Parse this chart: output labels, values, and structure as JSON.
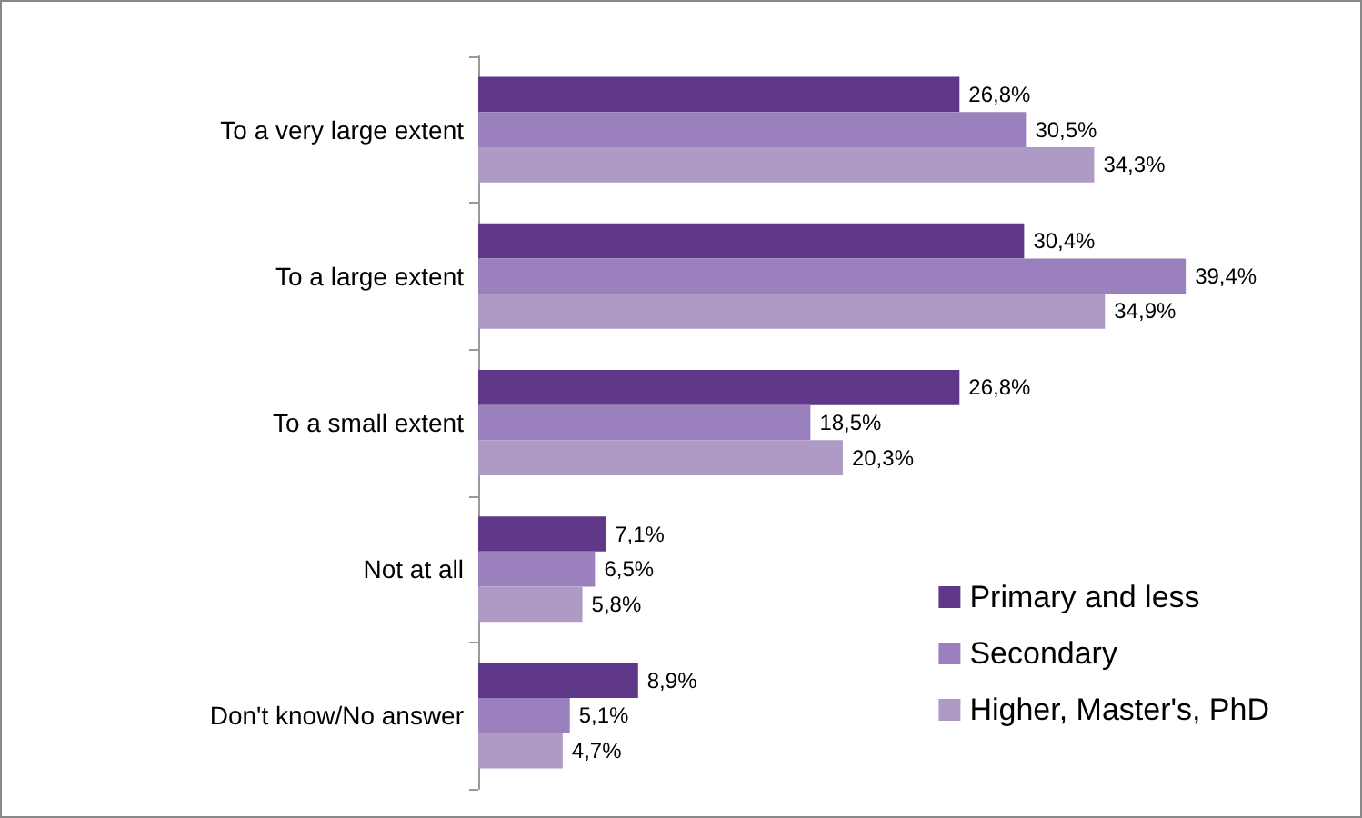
{
  "chart_data": {
    "type": "bar",
    "orientation": "horizontal",
    "categories": [
      "To a very large extent",
      "To a large extent",
      "To a small extent",
      "Not at all",
      "Don't know/No answer"
    ],
    "series": [
      {
        "name": "Primary and less",
        "color": "#60388a",
        "values": [
          26.8,
          30.4,
          26.8,
          7.1,
          8.9
        ],
        "value_labels": [
          "26,8%",
          "30,4%",
          "26,8%",
          "7,1%",
          "8,9%"
        ]
      },
      {
        "name": "Secondary",
        "color": "#9a80bd",
        "values": [
          30.5,
          39.4,
          18.5,
          6.5,
          5.1
        ],
        "value_labels": [
          "30,5%",
          "39,4%",
          "18,5%",
          "6,5%",
          "5,1%"
        ]
      },
      {
        "name": "Higher, Master's, PhD",
        "color": "#ae9ac4",
        "values": [
          34.3,
          34.9,
          20.3,
          5.8,
          4.7
        ],
        "value_labels": [
          "34,3%",
          "34,9%",
          "20,3%",
          "5,8%",
          "4,7%"
        ]
      }
    ],
    "legend": "bottom right"
  }
}
